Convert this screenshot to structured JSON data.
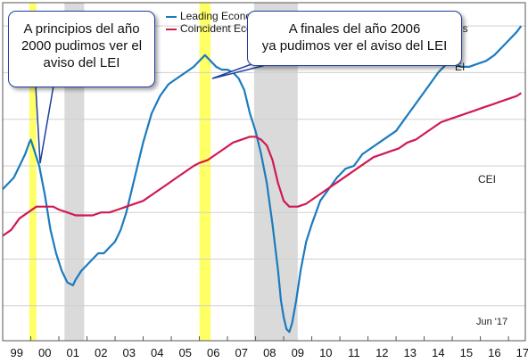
{
  "chart_data": {
    "type": "line",
    "x_tick_labels": [
      "99",
      "00",
      "01",
      "02",
      "03",
      "04",
      "05",
      "06",
      "07",
      "08",
      "09",
      "10",
      "11",
      "12",
      "13",
      "14",
      "15",
      "16",
      "17"
    ],
    "x_range": [
      1999,
      2017.6
    ],
    "legend": [
      "Leading Econo",
      "Coincident Eco",
      "es"
    ],
    "series": [
      {
        "name": "LEI",
        "color": "#1a7bbf",
        "points": [
          [
            1999.0,
            64
          ],
          [
            1999.2,
            65
          ],
          [
            1999.4,
            66
          ],
          [
            1999.6,
            68
          ],
          [
            1999.8,
            70
          ],
          [
            1999.95,
            72
          ],
          [
            2000.0,
            72.5
          ],
          [
            2000.1,
            71
          ],
          [
            2000.3,
            68
          ],
          [
            2000.5,
            63
          ],
          [
            2000.7,
            57
          ],
          [
            2000.9,
            53
          ],
          [
            2001.1,
            50
          ],
          [
            2001.3,
            48
          ],
          [
            2001.5,
            47.5
          ],
          [
            2001.6,
            48.5
          ],
          [
            2001.8,
            50
          ],
          [
            2002.0,
            51
          ],
          [
            2002.2,
            52
          ],
          [
            2002.4,
            53
          ],
          [
            2002.6,
            53
          ],
          [
            2002.8,
            54
          ],
          [
            2003.0,
            55
          ],
          [
            2003.2,
            57
          ],
          [
            2003.4,
            60
          ],
          [
            2003.6,
            64
          ],
          [
            2003.8,
            68
          ],
          [
            2004.0,
            72
          ],
          [
            2004.3,
            77
          ],
          [
            2004.6,
            80
          ],
          [
            2004.9,
            82
          ],
          [
            2005.2,
            83
          ],
          [
            2005.5,
            84
          ],
          [
            2005.8,
            85
          ],
          [
            2006.0,
            86
          ],
          [
            2006.2,
            87
          ],
          [
            2006.4,
            86
          ],
          [
            2006.6,
            85
          ],
          [
            2006.8,
            84.5
          ],
          [
            2007.0,
            84.5
          ],
          [
            2007.2,
            84
          ],
          [
            2007.4,
            83
          ],
          [
            2007.6,
            81
          ],
          [
            2007.8,
            77
          ],
          [
            2008.0,
            74
          ],
          [
            2008.2,
            70
          ],
          [
            2008.4,
            65
          ],
          [
            2008.6,
            58
          ],
          [
            2008.8,
            50
          ],
          [
            2008.9,
            45
          ],
          [
            2009.0,
            42
          ],
          [
            2009.1,
            40
          ],
          [
            2009.2,
            39.5
          ],
          [
            2009.3,
            41
          ],
          [
            2009.45,
            45
          ],
          [
            2009.6,
            50
          ],
          [
            2009.8,
            55
          ],
          [
            2010.0,
            58
          ],
          [
            2010.3,
            62
          ],
          [
            2010.6,
            64
          ],
          [
            2010.9,
            66
          ],
          [
            2011.2,
            67.5
          ],
          [
            2011.5,
            68
          ],
          [
            2011.8,
            70
          ],
          [
            2012.1,
            71
          ],
          [
            2012.4,
            72
          ],
          [
            2012.7,
            73
          ],
          [
            2013.0,
            74
          ],
          [
            2013.3,
            76
          ],
          [
            2013.6,
            78
          ],
          [
            2013.9,
            80
          ],
          [
            2014.2,
            82
          ],
          [
            2014.5,
            84
          ],
          [
            2014.8,
            85.5
          ],
          [
            2015.0,
            86
          ],
          [
            2015.3,
            85
          ],
          [
            2015.6,
            85
          ],
          [
            2015.9,
            85.5
          ],
          [
            2016.2,
            86
          ],
          [
            2016.5,
            87
          ],
          [
            2016.8,
            88.5
          ],
          [
            2017.1,
            90
          ],
          [
            2017.3,
            91
          ],
          [
            2017.45,
            92
          ]
        ]
      },
      {
        "name": "CEI",
        "color": "#d01a52",
        "points": [
          [
            1999.0,
            56
          ],
          [
            1999.3,
            57
          ],
          [
            1999.6,
            59
          ],
          [
            1999.9,
            60
          ],
          [
            2000.2,
            61
          ],
          [
            2000.5,
            61
          ],
          [
            2000.8,
            61
          ],
          [
            2001.0,
            60.5
          ],
          [
            2001.3,
            60
          ],
          [
            2001.6,
            59.5
          ],
          [
            2001.9,
            59.5
          ],
          [
            2002.2,
            59.5
          ],
          [
            2002.5,
            60
          ],
          [
            2002.8,
            60
          ],
          [
            2003.1,
            60.5
          ],
          [
            2003.4,
            61
          ],
          [
            2003.7,
            61.5
          ],
          [
            2004.0,
            62
          ],
          [
            2004.3,
            63
          ],
          [
            2004.6,
            64
          ],
          [
            2004.9,
            65
          ],
          [
            2005.2,
            66
          ],
          [
            2005.5,
            67
          ],
          [
            2005.8,
            68
          ],
          [
            2006.0,
            68.5
          ],
          [
            2006.3,
            69
          ],
          [
            2006.6,
            70
          ],
          [
            2006.9,
            71
          ],
          [
            2007.2,
            72
          ],
          [
            2007.5,
            72.5
          ],
          [
            2007.8,
            73
          ],
          [
            2008.0,
            73
          ],
          [
            2008.2,
            72.5
          ],
          [
            2008.4,
            71.5
          ],
          [
            2008.6,
            69
          ],
          [
            2008.8,
            65
          ],
          [
            2009.0,
            62
          ],
          [
            2009.2,
            61
          ],
          [
            2009.5,
            61
          ],
          [
            2009.8,
            61.5
          ],
          [
            2010.1,
            62.5
          ],
          [
            2010.4,
            63.5
          ],
          [
            2010.7,
            64.5
          ],
          [
            2011.0,
            65.5
          ],
          [
            2011.3,
            66.5
          ],
          [
            2011.6,
            67.5
          ],
          [
            2011.9,
            68.5
          ],
          [
            2012.2,
            69.5
          ],
          [
            2012.5,
            70
          ],
          [
            2012.8,
            70.5
          ],
          [
            2013.1,
            71
          ],
          [
            2013.4,
            72
          ],
          [
            2013.7,
            72.5
          ],
          [
            2014.0,
            73.5
          ],
          [
            2014.3,
            74.5
          ],
          [
            2014.6,
            75.5
          ],
          [
            2014.9,
            76
          ],
          [
            2015.2,
            76.5
          ],
          [
            2015.5,
            77
          ],
          [
            2015.8,
            77.5
          ],
          [
            2016.1,
            78
          ],
          [
            2016.4,
            78.5
          ],
          [
            2016.7,
            79
          ],
          [
            2017.0,
            79.5
          ],
          [
            2017.3,
            80
          ],
          [
            2017.45,
            80.5
          ]
        ]
      }
    ],
    "y_range": [
      38,
      96
    ],
    "y_gridlines": [
      44,
      52,
      60,
      68,
      76,
      84,
      92
    ],
    "recessions": [
      [
        2001.2,
        2001.9
      ],
      [
        2007.95,
        2009.5
      ]
    ],
    "highlights": [
      [
        1999.95,
        2000.2
      ],
      [
        2006.0,
        2006.4
      ]
    ],
    "annotations": {
      "cei_label": "CEI",
      "lei_label_partial": "EI",
      "date_note": "Jun '17"
    }
  },
  "callouts": {
    "left_line1": "A principios del año",
    "left_line2": "2000 pudimos ver el",
    "left_line3": "aviso del LEI",
    "right_line1": "A finales del año 2006",
    "right_line2": "ya pudimos ver el aviso del LEI"
  },
  "colors": {
    "recession_band": "#dadada",
    "highlight_band": "#ffff66",
    "grid": "#d0d0d0",
    "callout_border": "#1f3f9c"
  }
}
